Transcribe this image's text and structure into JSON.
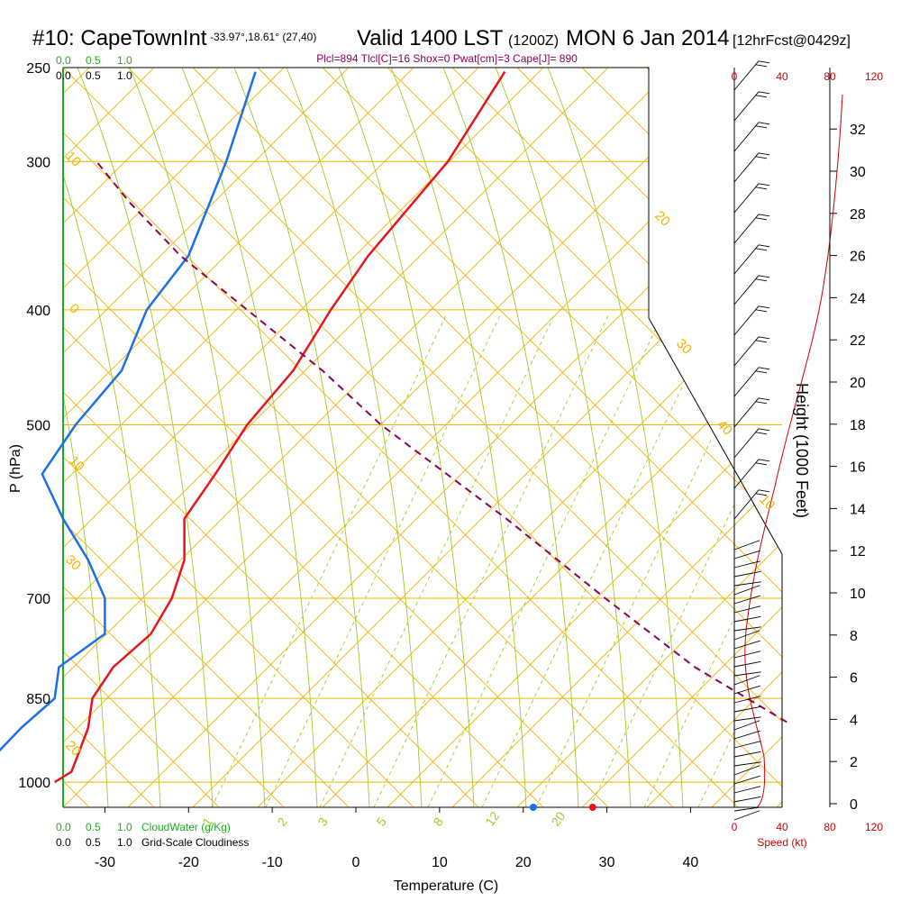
{
  "header": {
    "station": "#10: CapeTownInt",
    "coords": "-33.97°,18.61° (27,40)",
    "valid": "Valid 1400 LST",
    "zulu": "(1200Z)",
    "date": "MON 6 Jan 2014",
    "forecast": "[12hrFcst@0429z]",
    "params": "Plcl=894 Tlcl[C]=16 Shox=0 Pwat[cm]=3 Cape[J]= 890"
  },
  "colors": {
    "temperature": "#e8141b",
    "dewpoint": "#1a6fe8",
    "parcel": "#8b0058",
    "isobar": "#f0b400",
    "mixing_ratio": "#9ccc22",
    "wind_speed": "#cc0000",
    "cloudwater": "#22aa22"
  },
  "scales": {
    "cloudwater_ticks": [
      "0.0",
      "0.5",
      "1.0"
    ],
    "cloudiness_ticks": [
      "0.0",
      "0.5",
      "1.0"
    ],
    "cloudwater_label": "CloudWater (g/Kg)",
    "cloudiness_label": "Grid-Scale Cloudiness",
    "speed_ticks": [
      "0",
      "40",
      "80",
      "120"
    ],
    "speed_label": "Speed (kt)"
  },
  "chart_data": {
    "type": "line",
    "title": "#10: CapeTownInt Valid 1400 LST (1200Z) MON 6 Jan 2014 [12hrFcst@0429z]",
    "xlabel": "Temperature (C)",
    "ylabel": "P (hPa)",
    "y2label": "Height (1000 Feet)",
    "x_ticks": [
      "-30",
      "-20",
      "-10",
      "0",
      "10",
      "20",
      "30",
      "40"
    ],
    "y_ticks": [
      "250",
      "300",
      "400",
      "500",
      "700",
      "850",
      "1000"
    ],
    "height_ticks": [
      "0",
      "2",
      "4",
      "6",
      "8",
      "10",
      "12",
      "14",
      "16",
      "18",
      "20",
      "22",
      "24",
      "26",
      "28",
      "30",
      "32"
    ],
    "isobar_labels": [
      "30",
      "20",
      "10",
      "0",
      "10",
      "20",
      "30",
      "40",
      "10",
      "0",
      "10",
      "20",
      "30"
    ],
    "mixing_ratio_labels": [
      "1",
      "2",
      "3",
      "5",
      "8",
      "12",
      "20"
    ],
    "series": [
      {
        "key": "temperature",
        "values": [
          [
            252,
            -17.2
          ],
          [
            300,
            -24
          ],
          [
            360,
            -33.5
          ],
          [
            400,
            -38
          ],
          [
            450,
            -42.5
          ],
          [
            500,
            -48
          ],
          [
            550,
            -51.8
          ],
          [
            600,
            -55.5
          ],
          [
            650,
            -55.5
          ],
          [
            700,
            -57
          ],
          [
            750,
            -59.5
          ],
          [
            800,
            -64
          ],
          [
            850,
            -66.5
          ],
          [
            900,
            -67
          ],
          [
            960,
            -68.5
          ],
          [
            980,
            -69
          ],
          [
            1000,
            -71
          ]
        ]
      },
      {
        "key": "dewpoint",
        "values": [
          [
            252,
            -47
          ],
          [
            300,
            -50.5
          ],
          [
            360,
            -55
          ],
          [
            400,
            -60
          ],
          [
            450,
            -63
          ],
          [
            500,
            -68.5
          ],
          [
            550,
            -72.5
          ],
          [
            600,
            -70
          ],
          [
            650,
            -67
          ],
          [
            700,
            -65
          ],
          [
            750,
            -65
          ],
          [
            800,
            -70.5
          ],
          [
            850,
            -71
          ],
          [
            900,
            -75
          ],
          [
            960,
            -78.8
          ],
          [
            980,
            -80
          ],
          [
            1000,
            -82
          ]
        ]
      },
      {
        "key": "parcel",
        "values": [
          [
            890,
            16.5
          ],
          [
            800,
            5.5
          ],
          [
            700,
            -5.2
          ],
          [
            600,
            -17
          ],
          [
            500,
            -32
          ],
          [
            450,
            -39
          ],
          [
            400,
            -48
          ],
          [
            360,
            -56
          ],
          [
            325,
            -62
          ],
          [
            300,
            -66
          ]
        ]
      }
    ],
    "surface_points": {
      "temperature": 28.3,
      "dewpoint": 21.2
    },
    "xlim": [
      -35,
      35
    ],
    "ylim": [
      1050,
      250
    ]
  }
}
